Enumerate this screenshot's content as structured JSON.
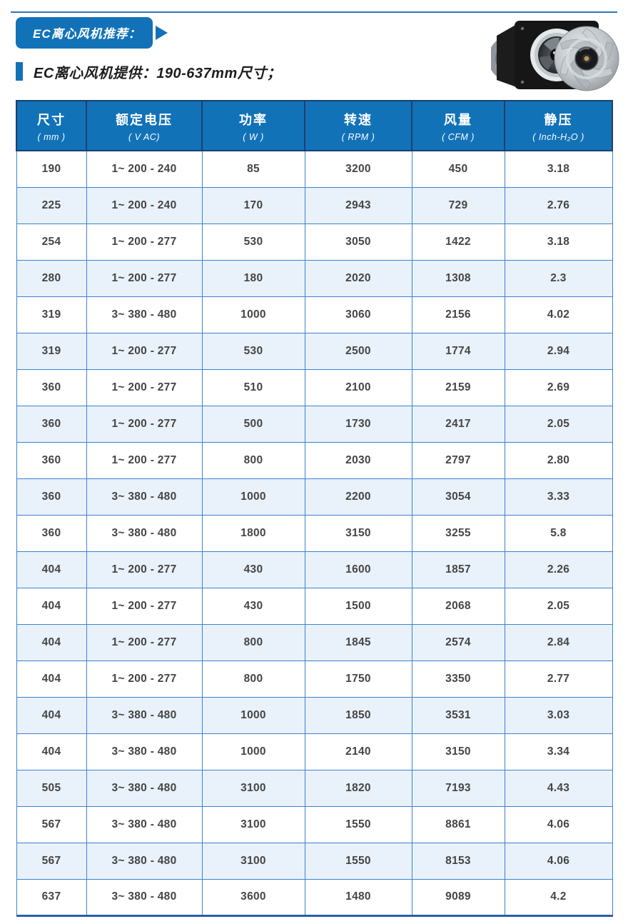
{
  "header": {
    "ribbon_title": "EC离心风机推荐：",
    "subtitle": "EC离心风机提供：190-637mm尺寸；"
  },
  "icons": {
    "ribbon_arrow": "right-arrow",
    "bullet_bar": "blue-square-bullet",
    "fan_photo": "two-ec-centrifugal-fans"
  },
  "colors": {
    "primary_blue": "#1272b8",
    "header_outline_navy": "#1b3f70",
    "grid_border_blue": "#3c82cc",
    "alt_row_blue": "#e9f1fb",
    "top_rule_blue": "#2e75b6",
    "cell_text": "#454545"
  },
  "table": {
    "columns": [
      {
        "label": "尺寸",
        "unit": "( mm )"
      },
      {
        "label": "额定电压",
        "unit": "( V AC)"
      },
      {
        "label": "功率",
        "unit": "( W )"
      },
      {
        "label": "转速",
        "unit": "( RPM )"
      },
      {
        "label": "风量",
        "unit": "( CFM )"
      },
      {
        "label": "静压",
        "unit": "( Inch-H₂O )"
      }
    ],
    "rows": [
      [
        "190",
        "1~ 200 - 240",
        "85",
        "3200",
        "450",
        "3.18"
      ],
      [
        "225",
        "1~ 200 - 240",
        "170",
        "2943",
        "729",
        "2.76"
      ],
      [
        "254",
        "1~ 200 - 277",
        "530",
        "3050",
        "1422",
        "3.18"
      ],
      [
        "280",
        "1~ 200 - 277",
        "180",
        "2020",
        "1308",
        "2.3"
      ],
      [
        "319",
        "3~ 380 - 480",
        "1000",
        "3060",
        "2156",
        "4.02"
      ],
      [
        "319",
        "1~ 200 - 277",
        "530",
        "2500",
        "1774",
        "2.94"
      ],
      [
        "360",
        "1~ 200 - 277",
        "510",
        "2100",
        "2159",
        "2.69"
      ],
      [
        "360",
        "1~ 200 - 277",
        "500",
        "1730",
        "2417",
        "2.05"
      ],
      [
        "360",
        "1~ 200 - 277",
        "800",
        "2030",
        "2797",
        "2.80"
      ],
      [
        "360",
        "3~ 380 - 480",
        "1000",
        "2200",
        "3054",
        "3.33"
      ],
      [
        "360",
        "3~ 380 - 480",
        "1800",
        "3150",
        "3255",
        "5.8"
      ],
      [
        "404",
        "1~ 200 - 277",
        "430",
        "1600",
        "1857",
        "2.26"
      ],
      [
        "404",
        "1~ 200 - 277",
        "430",
        "1500",
        "2068",
        "2.05"
      ],
      [
        "404",
        "1~ 200 - 277",
        "800",
        "1845",
        "2574",
        "2.84"
      ],
      [
        "404",
        "1~ 200 - 277",
        "800",
        "1750",
        "3350",
        "2.77"
      ],
      [
        "404",
        "3~ 380 - 480",
        "1000",
        "1850",
        "3531",
        "3.03"
      ],
      [
        "404",
        "3~ 380 - 480",
        "1000",
        "2140",
        "3150",
        "3.34"
      ],
      [
        "505",
        "3~ 380 - 480",
        "3100",
        "1820",
        "7193",
        "4.43"
      ],
      [
        "567",
        "3~ 380 - 480",
        "3100",
        "1550",
        "8861",
        "4.06"
      ],
      [
        "567",
        "3~ 380 - 480",
        "3100",
        "1550",
        "8153",
        "4.06"
      ],
      [
        "637",
        "3~ 380 - 480",
        "3600",
        "1480",
        "9089",
        "4.2"
      ]
    ]
  }
}
